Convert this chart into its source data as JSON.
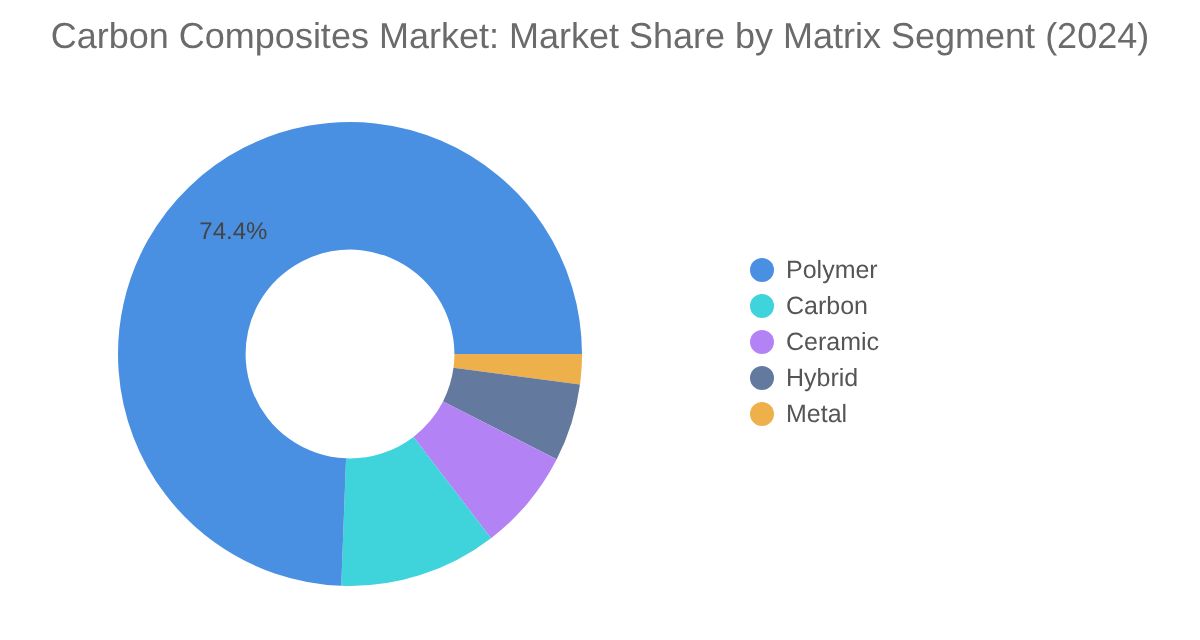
{
  "chart_data": {
    "type": "donut",
    "title": "Carbon Composites Market: Market Share by Matrix Segment (2024)",
    "categories": [
      "Polymer",
      "Carbon",
      "Ceramic",
      "Hybrid",
      "Metal"
    ],
    "values": [
      74.4,
      11.0,
      7.1,
      5.4,
      2.1
    ],
    "colors": [
      "#4a90e2",
      "#3fd3db",
      "#b383f5",
      "#64799e",
      "#eeb04a"
    ],
    "value_labels": [
      "74.4%",
      null,
      null,
      null,
      null
    ],
    "legend": "right"
  }
}
